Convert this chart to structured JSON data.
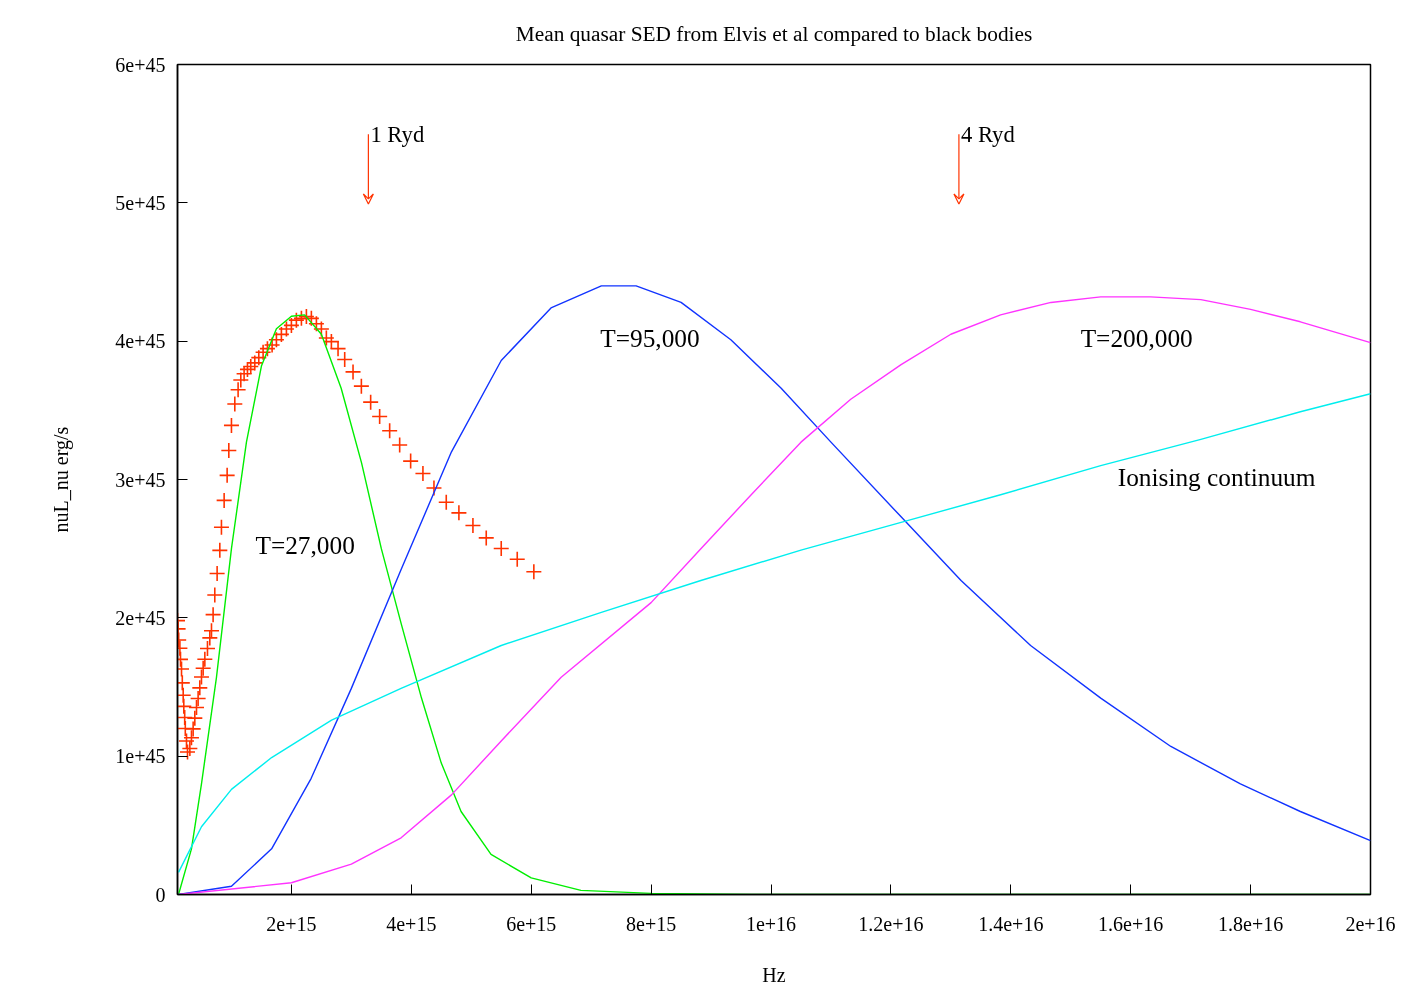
{
  "chart_data": {
    "type": "line",
    "title": "Mean quasar SED from Elvis et al compared to black bodies",
    "xlabel": "Hz",
    "ylabel": "nuL_nu erg/s",
    "xlim": [
      100000000000000.0,
      2e+16
    ],
    "xticks": [
      {
        "value": 2000000000000000.0,
        "label": "2e+15"
      },
      {
        "value": 4000000000000000.0,
        "label": "4e+15"
      },
      {
        "value": 6000000000000000.0,
        "label": "6e+15"
      },
      {
        "value": 8000000000000000.0,
        "label": "8e+15"
      },
      {
        "value": 1e+16,
        "label": "1e+16"
      },
      {
        "value": 1.2e+16,
        "label": "1.2e+16"
      },
      {
        "value": 1.4e+16,
        "label": "1.4e+16"
      },
      {
        "value": 1.6e+16,
        "label": "1.6e+16"
      },
      {
        "value": 1.8e+16,
        "label": "1.8e+16"
      },
      {
        "value": 2e+16,
        "label": "2e+16"
      }
    ],
    "ylim": [
      0,
      6e+45
    ],
    "yticks": [
      0,
      {
        "value": 1e+45,
        "label": "1e+45"
      },
      {
        "value": 2e+45,
        "label": "2e+45"
      },
      {
        "value": 3e+45,
        "label": "3e+45"
      },
      {
        "value": 4e+45,
        "label": "4e+45"
      },
      {
        "value": 5e+45,
        "label": "5e+45"
      },
      {
        "value": 6e+45,
        "label": "6e+45"
      }
    ],
    "grid": false,
    "annotations": [
      "1 Ryd",
      "4 Ryd",
      "T=27,000",
      "T=95,000",
      "T=200,000",
      "Ionising continuum"
    ],
    "series": [
      {
        "type": "scatter",
        "marker": "cross",
        "color": "#ff3300",
        "x": [
          100000000000000.0,
          110000000000000.0,
          120000000000000.0,
          140000000000000.0,
          150000000000000.0,
          167000000000000.0,
          180000000000000.0,
          195000000000000.0,
          205000000000000.0,
          220000000000000.0,
          230000000000000.0,
          250000000000000.0,
          267000000000000.0,
          306000000000000.0,
          333000000000000.0,
          361000000000000.0,
          389000000000000.0,
          417000000000000.0,
          444000000000000.0,
          472000000000000.0,
          500000000000000.0,
          528000000000000.0,
          556000000000000.0,
          600000000000000.0,
          639000000000000.0,
          667000000000000.0,
          694000000000000.0,
          722000000000000.0,
          761000000000000.0,
          806000000000000.0,
          833000000000000.0,
          878000000000000.0,
          928000000000000.0,
          956000000000000.0,
          1000000000000000.0,
          1056000000000000.0,
          1111000000000000.0,
          1156000000000000.0,
          1211000000000000.0,
          1267000000000000.0,
          1322000000000000.0,
          1389000000000000.0,
          1456000000000000.0,
          1528000000000000.0,
          1600000000000000.0,
          1678000000000000.0,
          1750000000000000.0,
          1833000000000000.0,
          1917000000000000.0,
          2000000000000000.0,
          2083000000000000.0,
          2167000000000000.0,
          2250000000000000.0,
          2333000000000000.0,
          2417000000000000.0,
          2500000000000000.0,
          2583000000000000.0,
          2667000000000000.0,
          2778000000000000.0,
          2889000000000000.0,
          3028000000000000.0,
          3167000000000000.0,
          3322000000000000.0,
          3472000000000000.0,
          3639000000000000.0,
          3806000000000000.0,
          3989000000000000.0,
          4194000000000000.0,
          4378000000000000.0,
          4583000000000000.0,
          4794000000000000.0,
          5028000000000000.0,
          5250000000000000.0,
          5500000000000000.0,
          5767000000000000.0,
          6044000000000000.0
        ],
        "values": [
          1.98e+45,
          1.92e+45,
          1.84e+45,
          1.78e+45,
          1.7e+45,
          1.63e+45,
          1.53e+45,
          1.44e+45,
          1.36e+45,
          1.28e+45,
          1.2e+45,
          1.11e+45,
          1.03e+45,
          1.055e+45,
          1.133e+45,
          1.197e+45,
          1.275e+45,
          1.352e+45,
          1.417e+45,
          1.494e+45,
          1.572e+45,
          1.636e+45,
          1.701e+45,
          1.778e+45,
          1.855e+45,
          1.907e+45,
          2.023e+45,
          2.165e+45,
          2.32e+45,
          2.488e+45,
          2.655e+45,
          2.849e+45,
          3.03e+45,
          3.21e+45,
          3.391e+45,
          3.546e+45,
          3.649e+45,
          3.719e+45,
          3.765e+45,
          3.796e+45,
          3.817e+45,
          3.843e+45,
          3.881e+45,
          3.92e+45,
          3.946e+45,
          3.972e+45,
          4.01e+45,
          4.049e+45,
          4.088e+45,
          4.114e+45,
          4.152e+45,
          4.165e+45,
          4.178e+45,
          4.165e+45,
          4.126e+45,
          4.088e+45,
          4.023e+45,
          3.997e+45,
          3.946e+45,
          3.868e+45,
          3.778e+45,
          3.675e+45,
          3.559e+45,
          3.455e+45,
          3.352e+45,
          3.249e+45,
          3.133e+45,
          3.043e+45,
          2.939e+45,
          2.836e+45,
          2.759e+45,
          2.668e+45,
          2.578e+45,
          2.501e+45,
          2.423e+45,
          2.333e+45
        ]
      },
      {
        "color": "#00ee00",
        "x": [
          117000000000000.0,
          333000000000000.0,
          500000000000000.0,
          750000000000000.0,
          1000000000000000.0,
          1250000000000000.0,
          1500000000000000.0,
          1750000000000000.0,
          2000000000000000.0,
          2220000000000000.0,
          2500000000000000.0,
          2830000000000000.0,
          3170000000000000.0,
          3500000000000000.0,
          3830000000000000.0,
          4170000000000000.0,
          4500000000000000.0,
          4830000000000000.0,
          5330000000000000.0,
          6000000000000000.0,
          6830000000000000.0,
          8000000000000000.0,
          9670000000000000.0,
          2e+16
        ],
        "values": [
          0,
          3.3e+44,
          8e+44,
          1.57e+45,
          2.5e+45,
          3.27e+45,
          3.82e+45,
          4.09e+45,
          4.18e+45,
          4.19e+45,
          4.05e+45,
          3.66e+45,
          3.12e+45,
          2.5e+45,
          1.96e+45,
          1.42e+45,
          9.5e+44,
          6e+44,
          2.9e+44,
          1.2e+44,
          3e+43,
          8e+42,
          0,
          0
        ]
      },
      {
        "color": "#1133ff",
        "x": [
          117000000000000.0,
          1000000000000000.0,
          1670000000000000.0,
          2330000000000000.0,
          3000000000000000.0,
          3830000000000000.0,
          4670000000000000.0,
          5500000000000000.0,
          6330000000000000.0,
          7170000000000000.0,
          7750000000000000.0,
          8500000000000000.0,
          9330000000000000.0,
          1.017e+16,
          1.1e+16,
          1.217e+16,
          1.317e+16,
          1.433e+16,
          1.55e+16,
          1.667e+16,
          1.783e+16,
          1.883e+16,
          2e+16
        ],
        "values": [
          0,
          6e+43,
          3.3e+44,
          8.4e+44,
          1.49e+45,
          2.35e+45,
          3.2e+45,
          3.86e+45,
          4.24e+45,
          4.4e+45,
          4.4e+45,
          4.28e+45,
          4.01e+45,
          3.66e+45,
          3.27e+45,
          2.73e+45,
          2.27e+45,
          1.8e+45,
          1.42e+45,
          1.07e+45,
          8e+44,
          6e+44,
          3.9e+44
        ]
      },
      {
        "color": "#ff33ff",
        "x": [
          117000000000000.0,
          2000000000000000.0,
          3000000000000000.0,
          3830000000000000.0,
          4670000000000000.0,
          5500000000000000.0,
          6500000000000000.0,
          8000000000000000.0,
          8830000000000000.0,
          9670000000000000.0,
          1.05e+16,
          1.133e+16,
          1.217e+16,
          1.3e+16,
          1.383e+16,
          1.467e+16,
          1.55e+16,
          1.633e+16,
          1.717e+16,
          1.8e+16,
          1.883e+16,
          2e+16
        ],
        "values": [
          0,
          8.5e+43,
          2.2e+44,
          4.1e+44,
          7.2e+44,
          1.11e+45,
          1.57e+45,
          2.11e+45,
          2.5e+45,
          2.89e+45,
          3.27e+45,
          3.58e+45,
          3.83e+45,
          4.05e+45,
          4.19e+45,
          4.28e+45,
          4.32e+45,
          4.32e+45,
          4.3e+45,
          4.23e+45,
          4.14e+45,
          3.99e+45
        ]
      },
      {
        "color": "#00eeee",
        "x": [
          117000000000000.0,
          500000000000000.0,
          1000000000000000.0,
          1670000000000000.0,
          2670000000000000.0,
          3830000000000000.0,
          5500000000000000.0,
          7170000000000000.0,
          8830000000000000.0,
          1.05e+16,
          1.217e+16,
          1.383e+16,
          1.55e+16,
          1.717e+16,
          1.883e+16,
          2e+16
        ],
        "values": [
          1.6e+44,
          4.9e+44,
          7.6e+44,
          9.9e+44,
          1.26e+45,
          1.49e+45,
          1.8e+45,
          2.04e+45,
          2.27e+45,
          2.49e+45,
          2.69e+45,
          2.89e+45,
          3.1e+45,
          3.29e+45,
          3.49e+45,
          3.62e+45
        ]
      }
    ]
  }
}
